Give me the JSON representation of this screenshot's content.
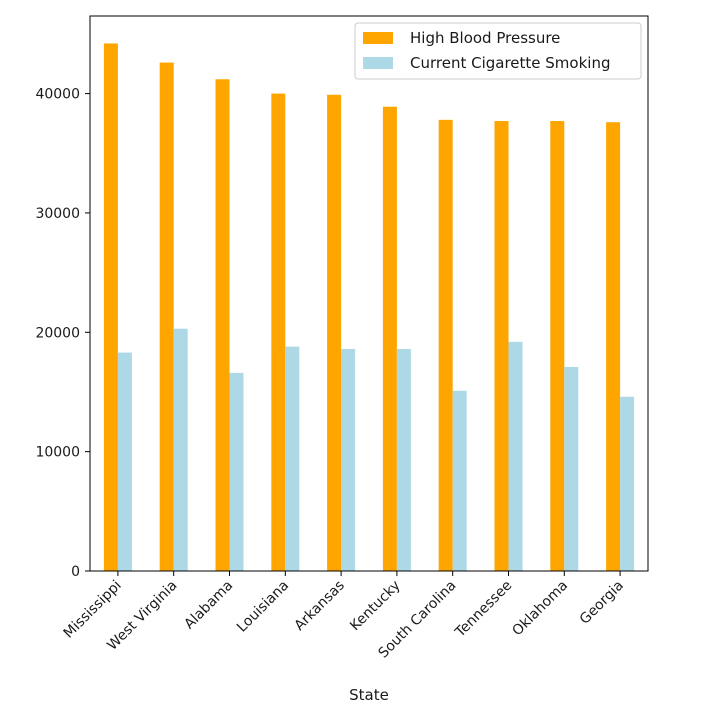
{
  "chart_data": {
    "type": "bar",
    "xlabel": "State",
    "ylabel": "",
    "categories": [
      "Mississippi",
      "West Virginia",
      "Alabama",
      "Louisiana",
      "Arkansas",
      "Kentucky",
      "South Carolina",
      "Tennessee",
      "Oklahoma",
      "Georgia"
    ],
    "series": [
      {
        "name": "High Blood Pressure",
        "color": "#ffa500",
        "values": [
          44200,
          42600,
          41200,
          40000,
          39900,
          38900,
          37800,
          37700,
          37700,
          37600
        ]
      },
      {
        "name": "Current Cigarette Smoking",
        "color": "#add8e6",
        "values": [
          18300,
          20300,
          16600,
          18800,
          18600,
          18600,
          15100,
          19200,
          17100,
          14600
        ]
      }
    ],
    "ylim": [
      0,
      46500
    ],
    "yticks": [
      0,
      10000,
      20000,
      30000,
      40000
    ],
    "ytick_labels": [
      "0",
      "10000",
      "20000",
      "30000",
      "40000"
    ],
    "grid": false,
    "legend_position": "top-right"
  }
}
